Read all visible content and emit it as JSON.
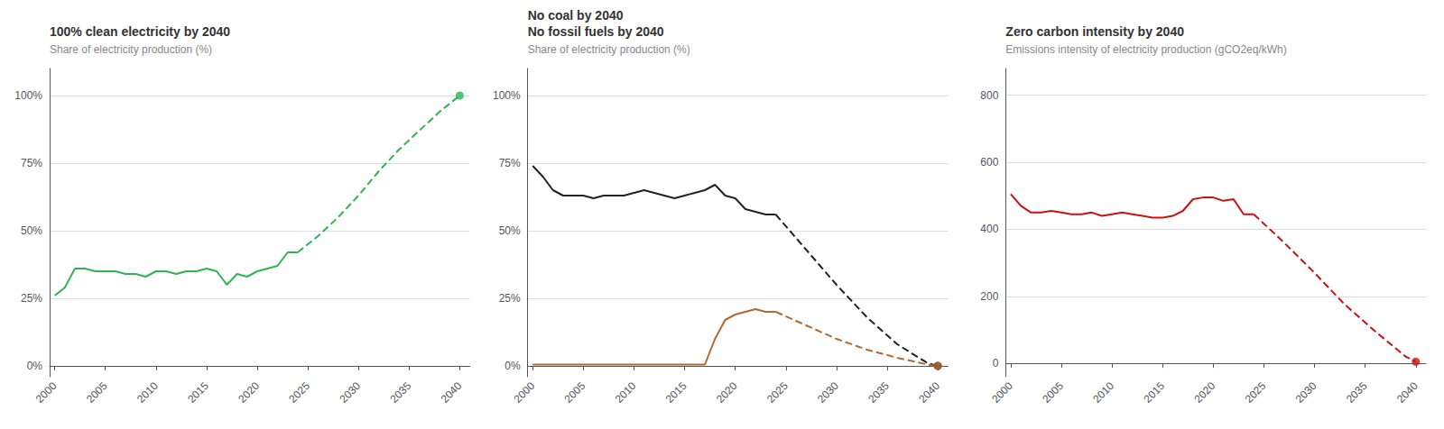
{
  "chart_data": [
    {
      "type": "line",
      "title": "100% clean electricity by 2040",
      "subtitle": "Share of electricity production (%)",
      "xlim": [
        1999.5,
        2041
      ],
      "xticks": [
        2000,
        2005,
        2010,
        2015,
        2020,
        2025,
        2030,
        2035,
        2040
      ],
      "ylim": [
        -4,
        110
      ],
      "yticks": [
        {
          "value": 0,
          "label": "0%"
        },
        {
          "value": 25,
          "label": "25%"
        },
        {
          "value": 50,
          "label": "50%"
        },
        {
          "value": 75,
          "label": "75%"
        },
        {
          "value": 100,
          "label": "100%"
        }
      ],
      "grid": true,
      "series": [
        {
          "x": [
            2000,
            2001,
            2002,
            2003,
            2004,
            2005,
            2006,
            2007,
            2008,
            2009,
            2010,
            2011,
            2012,
            2013,
            2014,
            2015,
            2016,
            2017,
            2018,
            2019,
            2020,
            2021,
            2022,
            2023,
            2024
          ],
          "values": [
            26,
            29,
            36,
            36,
            35,
            35,
            35,
            34,
            34,
            33,
            35,
            35,
            34,
            35,
            35,
            36,
            35,
            30,
            34,
            33,
            35,
            36,
            37,
            42,
            42
          ],
          "color": "#2db551",
          "line_style": "solid"
        },
        {
          "x": [
            2024,
            2026,
            2028,
            2030,
            2032,
            2034,
            2036,
            2038,
            2040
          ],
          "values": [
            42,
            48,
            55,
            63,
            72,
            80,
            87,
            94,
            100
          ],
          "color": "#2db551",
          "line_style": "dashed"
        },
        {
          "type": "scatter",
          "x": [
            2040
          ],
          "values": [
            100
          ],
          "color": "#2db551",
          "marker": "circle"
        }
      ]
    },
    {
      "type": "line",
      "title": "No coal by 2040\nNo fossil fuels by 2040",
      "subtitle": "Share of electricity production (%)",
      "xlim": [
        1999.5,
        2041
      ],
      "xticks": [
        2000,
        2005,
        2010,
        2015,
        2020,
        2025,
        2030,
        2035,
        2040
      ],
      "ylim": [
        -4,
        110
      ],
      "yticks": [
        {
          "value": 0,
          "label": "0%"
        },
        {
          "value": 25,
          "label": "25%"
        },
        {
          "value": 50,
          "label": "50%"
        },
        {
          "value": 75,
          "label": "75%"
        },
        {
          "value": 100,
          "label": "100%"
        }
      ],
      "grid": true,
      "series": [
        {
          "x": [
            2000,
            2001,
            2002,
            2003,
            2004,
            2005,
            2006,
            2007,
            2008,
            2009,
            2010,
            2011,
            2012,
            2013,
            2014,
            2015,
            2016,
            2017,
            2018,
            2019,
            2020,
            2021,
            2022,
            2023,
            2024
          ],
          "values": [
            74,
            70,
            65,
            63,
            63,
            63,
            62,
            63,
            63,
            63,
            64,
            65,
            64,
            63,
            62,
            63,
            64,
            65,
            67,
            63,
            62,
            58,
            57,
            56,
            56
          ],
          "color": "#222222",
          "line_style": "solid"
        },
        {
          "x": [
            2024,
            2027,
            2030,
            2033,
            2036,
            2039,
            2040
          ],
          "values": [
            56,
            43,
            30,
            18,
            8,
            1,
            0
          ],
          "color": "#222222",
          "line_style": "dashed"
        },
        {
          "type": "scatter",
          "x": [
            2040
          ],
          "values": [
            0
          ],
          "color": "#222222",
          "marker": "circle"
        },
        {
          "x": [
            2000,
            2001,
            2002,
            2003,
            2004,
            2005,
            2006,
            2007,
            2008,
            2009,
            2010,
            2011,
            2012,
            2013,
            2014,
            2015,
            2016,
            2017,
            2018,
            2019,
            2020,
            2021,
            2022,
            2023,
            2024
          ],
          "values": [
            0.5,
            0.5,
            0.5,
            0.5,
            0.5,
            0.5,
            0.5,
            0.5,
            0.5,
            0.5,
            0.5,
            0.5,
            0.5,
            0.5,
            0.5,
            0.5,
            0.5,
            0.5,
            10,
            17,
            19,
            20,
            21,
            20,
            20
          ],
          "color": "#b5682d",
          "line_style": "solid"
        },
        {
          "x": [
            2024,
            2027,
            2030,
            2033,
            2036,
            2039,
            2040
          ],
          "values": [
            20,
            15,
            10,
            6,
            3,
            0.5,
            0
          ],
          "color": "#b5682d",
          "line_style": "dashed"
        },
        {
          "type": "scatter",
          "x": [
            2040
          ],
          "values": [
            0
          ],
          "color": "#b5682d",
          "marker": "circle"
        }
      ]
    },
    {
      "type": "line",
      "title": "Zero carbon intensity by 2040",
      "subtitle": "Emissions intensity of electricity production (gCO2eq/kWh)",
      "xlim": [
        1999.5,
        2041
      ],
      "xticks": [
        2000,
        2005,
        2010,
        2015,
        2020,
        2025,
        2030,
        2035,
        2040
      ],
      "ylim": [
        -40,
        880
      ],
      "yticks": [
        0,
        200,
        400,
        600,
        800
      ],
      "grid": true,
      "series": [
        {
          "x": [
            2000,
            2001,
            2002,
            2003,
            2004,
            2005,
            2006,
            2007,
            2008,
            2009,
            2010,
            2011,
            2012,
            2013,
            2014,
            2015,
            2016,
            2017,
            2018,
            2019,
            2020,
            2021,
            2022,
            2023,
            2024
          ],
          "values": [
            505,
            470,
            450,
            450,
            455,
            450,
            445,
            445,
            450,
            440,
            445,
            450,
            445,
            440,
            435,
            435,
            440,
            455,
            490,
            495,
            495,
            485,
            490,
            445,
            445
          ],
          "color": "#cc1111",
          "line_style": "solid"
        },
        {
          "x": [
            2024,
            2027,
            2030,
            2033,
            2036,
            2039,
            2040
          ],
          "values": [
            445,
            360,
            270,
            175,
            95,
            20,
            5
          ],
          "color": "#cc1111",
          "line_style": "dashed"
        },
        {
          "type": "scatter",
          "x": [
            2040
          ],
          "values": [
            5
          ],
          "color": "#cc1111",
          "marker": "circle"
        }
      ]
    }
  ]
}
